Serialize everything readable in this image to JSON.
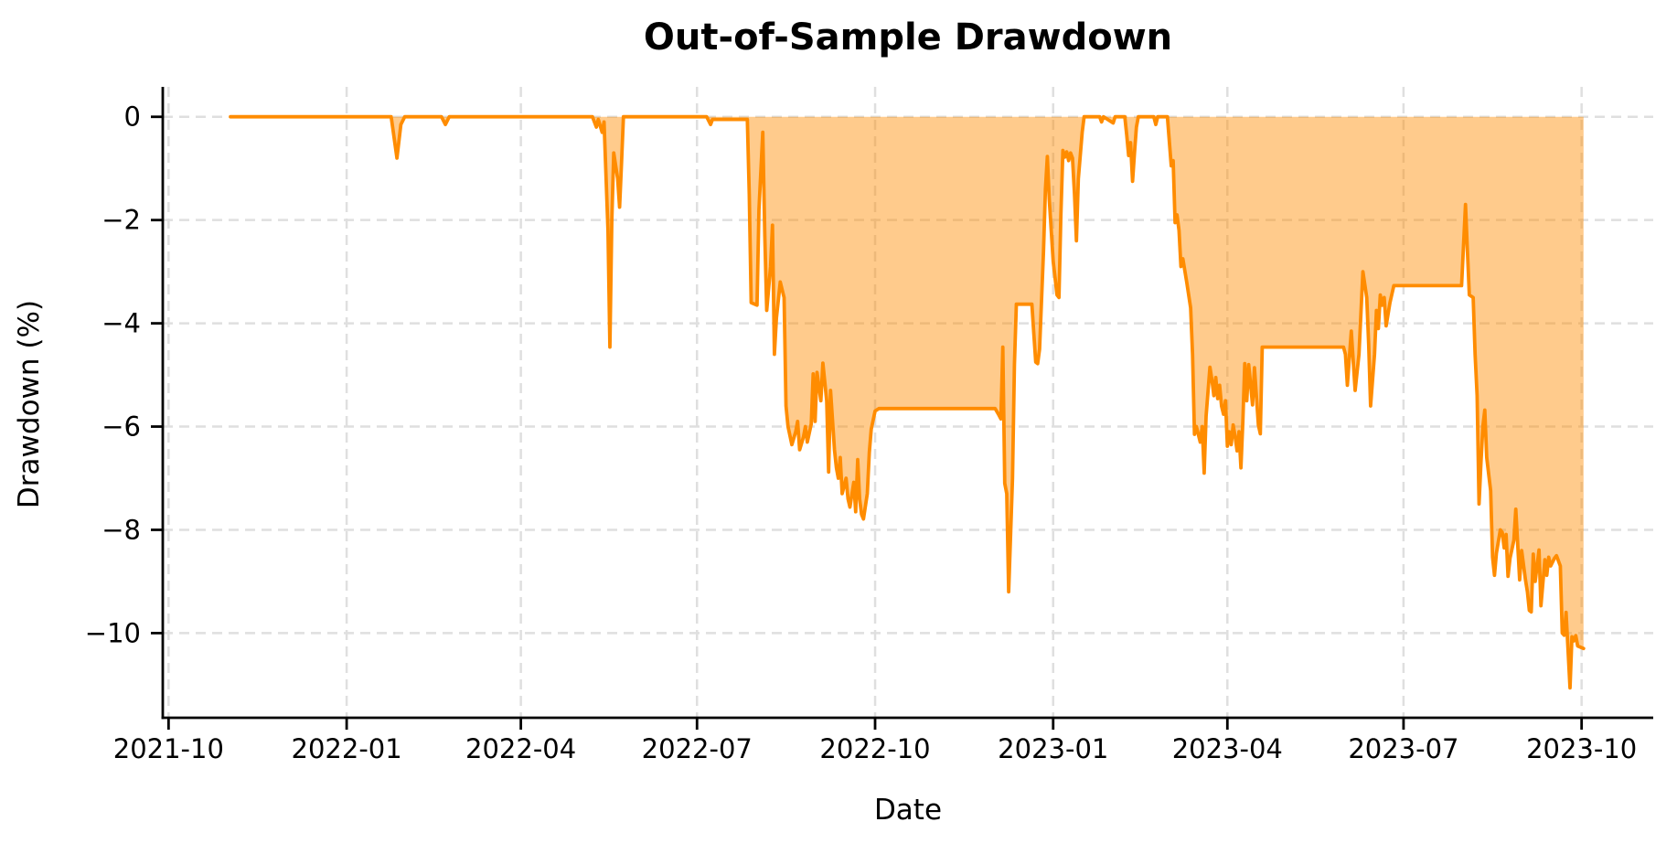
{
  "figure": {
    "title": "Out-of-Sample Drawdown",
    "xlabel": "Date",
    "ylabel": "Drawdown (%)"
  },
  "chart_data": {
    "type": "area",
    "title": "Out-of-Sample Drawdown",
    "xlabel": "Date",
    "ylabel": "Drawdown (%)",
    "legend": "none",
    "grid": true,
    "grid_style": "dashed",
    "grid_color": "#dfdfdf",
    "line_color": "#ff8c00",
    "fill_color": "rgba(255,140,0,0.45)",
    "spine_color": "#000000",
    "xlim": [
      "2021-09-28",
      "2023-11-07"
    ],
    "ylim": [
      -11.64,
      0.58
    ],
    "x_ticks": [
      {
        "label": "2021-10",
        "date": "2021-10-01"
      },
      {
        "label": "2022-01",
        "date": "2022-01-01"
      },
      {
        "label": "2022-04",
        "date": "2022-04-01"
      },
      {
        "label": "2022-07",
        "date": "2022-07-01"
      },
      {
        "label": "2022-10",
        "date": "2022-10-01"
      },
      {
        "label": "2023-01",
        "date": "2023-01-01"
      },
      {
        "label": "2023-04",
        "date": "2023-04-01"
      },
      {
        "label": "2023-07",
        "date": "2023-07-01"
      },
      {
        "label": "2023-10",
        "date": "2023-10-01"
      }
    ],
    "y_ticks": [
      {
        "label": "0",
        "value": 0
      },
      {
        "label": "−2",
        "value": -2
      },
      {
        "label": "−4",
        "value": -4
      },
      {
        "label": "−6",
        "value": -6
      },
      {
        "label": "−8",
        "value": -8
      },
      {
        "label": "−10",
        "value": -10
      }
    ],
    "series": [
      {
        "name": "drawdown_pct",
        "fill_to": 0,
        "points": [
          [
            "2021-11-02",
            0
          ],
          [
            "2022-01-24",
            0
          ],
          [
            "2022-01-27",
            -0.8
          ],
          [
            "2022-01-29",
            -0.15
          ],
          [
            "2022-01-31",
            0
          ],
          [
            "2022-02-19",
            0
          ],
          [
            "2022-02-21",
            -0.15
          ],
          [
            "2022-02-23",
            0
          ],
          [
            "2022-05-08",
            0
          ],
          [
            "2022-05-10",
            -0.2
          ],
          [
            "2022-05-11",
            -0.05
          ],
          [
            "2022-05-13",
            -0.3
          ],
          [
            "2022-05-14",
            -0.1
          ],
          [
            "2022-05-16",
            -2.2
          ],
          [
            "2022-05-17",
            -4.46
          ],
          [
            "2022-05-18",
            -2.0
          ],
          [
            "2022-05-19",
            -0.7
          ],
          [
            "2022-05-21",
            -1.2
          ],
          [
            "2022-05-22",
            -1.75
          ],
          [
            "2022-05-23",
            -0.9
          ],
          [
            "2022-05-24",
            0
          ],
          [
            "2022-07-06",
            0
          ],
          [
            "2022-07-08",
            -0.15
          ],
          [
            "2022-07-09",
            -0.05
          ],
          [
            "2022-07-27",
            -0.05
          ],
          [
            "2022-07-28",
            -1.5
          ],
          [
            "2022-07-29",
            -3.6
          ],
          [
            "2022-08-01",
            -3.65
          ],
          [
            "2022-08-02",
            -1.8
          ],
          [
            "2022-08-04",
            -0.3
          ],
          [
            "2022-08-05",
            -2.3
          ],
          [
            "2022-08-06",
            -3.75
          ],
          [
            "2022-08-08",
            -2.9
          ],
          [
            "2022-08-09",
            -2.1
          ],
          [
            "2022-08-10",
            -4.6
          ],
          [
            "2022-08-11",
            -3.9
          ],
          [
            "2022-08-13",
            -3.2
          ],
          [
            "2022-08-15",
            -3.5
          ],
          [
            "2022-08-16",
            -5.6
          ],
          [
            "2022-08-17",
            -6.0
          ],
          [
            "2022-08-19",
            -6.35
          ],
          [
            "2022-08-21",
            -6.1
          ],
          [
            "2022-08-22",
            -5.9
          ],
          [
            "2022-08-23",
            -6.45
          ],
          [
            "2022-08-25",
            -6.2
          ],
          [
            "2022-08-26",
            -6.0
          ],
          [
            "2022-08-27",
            -6.3
          ],
          [
            "2022-08-29",
            -5.95
          ],
          [
            "2022-08-30",
            -4.98
          ],
          [
            "2022-08-31",
            -5.9
          ],
          [
            "2022-09-01",
            -4.95
          ],
          [
            "2022-09-03",
            -5.5
          ],
          [
            "2022-09-04",
            -4.77
          ],
          [
            "2022-09-06",
            -5.5
          ],
          [
            "2022-09-07",
            -6.88
          ],
          [
            "2022-09-08",
            -5.3
          ],
          [
            "2022-09-10",
            -6.45
          ],
          [
            "2022-09-11",
            -6.8
          ],
          [
            "2022-09-12",
            -7.0
          ],
          [
            "2022-09-13",
            -6.6
          ],
          [
            "2022-09-14",
            -7.3
          ],
          [
            "2022-09-16",
            -7.0
          ],
          [
            "2022-09-17",
            -7.4
          ],
          [
            "2022-09-18",
            -7.56
          ],
          [
            "2022-09-20",
            -7.08
          ],
          [
            "2022-09-21",
            -7.65
          ],
          [
            "2022-09-22",
            -6.64
          ],
          [
            "2022-09-23",
            -7.4
          ],
          [
            "2022-09-24",
            -7.7
          ],
          [
            "2022-09-25",
            -7.79
          ],
          [
            "2022-09-27",
            -7.3
          ],
          [
            "2022-09-28",
            -6.5
          ],
          [
            "2022-09-29",
            -6.05
          ],
          [
            "2022-10-01",
            -5.7
          ],
          [
            "2022-10-03",
            -5.65
          ],
          [
            "2022-12-02",
            -5.65
          ],
          [
            "2022-12-04",
            -5.78
          ],
          [
            "2022-12-05",
            -5.85
          ],
          [
            "2022-12-06",
            -4.46
          ],
          [
            "2022-12-07",
            -7.1
          ],
          [
            "2022-12-08",
            -7.3
          ],
          [
            "2022-12-09",
            -9.2
          ],
          [
            "2022-12-11",
            -7.0
          ],
          [
            "2022-12-12",
            -4.8
          ],
          [
            "2022-12-13",
            -3.63
          ],
          [
            "2022-12-21",
            -3.63
          ],
          [
            "2022-12-22",
            -4.2
          ],
          [
            "2022-12-23",
            -4.75
          ],
          [
            "2022-12-24",
            -4.78
          ],
          [
            "2022-12-25",
            -4.5
          ],
          [
            "2022-12-27",
            -2.6
          ],
          [
            "2022-12-28",
            -1.4
          ],
          [
            "2022-12-29",
            -0.77
          ],
          [
            "2022-12-30",
            -1.6
          ],
          [
            "2023-01-01",
            -2.8
          ],
          [
            "2023-01-03",
            -3.45
          ],
          [
            "2023-01-04",
            -3.5
          ],
          [
            "2023-01-05",
            -1.9
          ],
          [
            "2023-01-06",
            -0.65
          ],
          [
            "2023-01-07",
            -0.78
          ],
          [
            "2023-01-08",
            -0.68
          ],
          [
            "2023-01-09",
            -0.85
          ],
          [
            "2023-01-10",
            -0.7
          ],
          [
            "2023-01-11",
            -0.8
          ],
          [
            "2023-01-12",
            -1.5
          ],
          [
            "2023-01-13",
            -2.4
          ],
          [
            "2023-01-14",
            -1.2
          ],
          [
            "2023-01-16",
            -0.3
          ],
          [
            "2023-01-17",
            0
          ],
          [
            "2023-01-25",
            0
          ],
          [
            "2023-01-26",
            -0.1
          ],
          [
            "2023-01-27",
            0
          ],
          [
            "2023-02-01",
            -0.12
          ],
          [
            "2023-02-02",
            0
          ],
          [
            "2023-02-07",
            0
          ],
          [
            "2023-02-08",
            -0.35
          ],
          [
            "2023-02-09",
            -0.75
          ],
          [
            "2023-02-10",
            -0.5
          ],
          [
            "2023-02-11",
            -1.25
          ],
          [
            "2023-02-12",
            -0.7
          ],
          [
            "2023-02-13",
            -0.2
          ],
          [
            "2023-02-14",
            0
          ],
          [
            "2023-02-22",
            0
          ],
          [
            "2023-02-23",
            -0.15
          ],
          [
            "2023-02-24",
            0
          ],
          [
            "2023-03-01",
            0
          ],
          [
            "2023-03-03",
            -0.95
          ],
          [
            "2023-03-04",
            -0.85
          ],
          [
            "2023-03-05",
            -2.05
          ],
          [
            "2023-03-06",
            -1.9
          ],
          [
            "2023-03-07",
            -2.2
          ],
          [
            "2023-03-08",
            -2.9
          ],
          [
            "2023-03-09",
            -2.75
          ],
          [
            "2023-03-11",
            -3.2
          ],
          [
            "2023-03-13",
            -3.7
          ],
          [
            "2023-03-14",
            -4.6
          ],
          [
            "2023-03-15",
            -6.15
          ],
          [
            "2023-03-16",
            -6.0
          ],
          [
            "2023-03-18",
            -6.3
          ],
          [
            "2023-03-19",
            -6.0
          ],
          [
            "2023-03-20",
            -6.9
          ],
          [
            "2023-03-21",
            -5.8
          ],
          [
            "2023-03-23",
            -4.85
          ],
          [
            "2023-03-24",
            -5.1
          ],
          [
            "2023-03-25",
            -5.4
          ],
          [
            "2023-03-26",
            -5.05
          ],
          [
            "2023-03-27",
            -5.46
          ],
          [
            "2023-03-28",
            -5.2
          ],
          [
            "2023-03-29",
            -5.6
          ],
          [
            "2023-03-30",
            -5.76
          ],
          [
            "2023-03-31",
            -5.5
          ],
          [
            "2023-04-01",
            -6.38
          ],
          [
            "2023-04-02",
            -6.1
          ],
          [
            "2023-04-03",
            -6.35
          ],
          [
            "2023-04-04",
            -5.97
          ],
          [
            "2023-04-05",
            -6.2
          ],
          [
            "2023-04-06",
            -6.47
          ],
          [
            "2023-04-07",
            -6.1
          ],
          [
            "2023-04-08",
            -6.8
          ],
          [
            "2023-04-09",
            -5.9
          ],
          [
            "2023-04-10",
            -4.78
          ],
          [
            "2023-04-11",
            -5.5
          ],
          [
            "2023-04-12",
            -4.8
          ],
          [
            "2023-04-14",
            -5.58
          ],
          [
            "2023-04-15",
            -4.86
          ],
          [
            "2023-04-16",
            -5.4
          ],
          [
            "2023-04-17",
            -5.97
          ],
          [
            "2023-04-18",
            -6.14
          ],
          [
            "2023-04-19",
            -4.46
          ],
          [
            "2023-05-31",
            -4.46
          ],
          [
            "2023-06-01",
            -4.6
          ],
          [
            "2023-06-02",
            -5.2
          ],
          [
            "2023-06-04",
            -4.15
          ],
          [
            "2023-06-06",
            -5.3
          ],
          [
            "2023-06-08",
            -4.6
          ],
          [
            "2023-06-10",
            -3.0
          ],
          [
            "2023-06-12",
            -3.5
          ],
          [
            "2023-06-13",
            -4.4
          ],
          [
            "2023-06-14",
            -5.6
          ],
          [
            "2023-06-16",
            -4.6
          ],
          [
            "2023-06-17",
            -3.75
          ],
          [
            "2023-06-18",
            -4.1
          ],
          [
            "2023-06-19",
            -3.45
          ],
          [
            "2023-06-20",
            -3.65
          ],
          [
            "2023-06-21",
            -3.5
          ],
          [
            "2023-06-22",
            -4.05
          ],
          [
            "2023-06-24",
            -3.6
          ],
          [
            "2023-06-26",
            -3.27
          ],
          [
            "2023-07-31",
            -3.27
          ],
          [
            "2023-08-02",
            -1.7
          ],
          [
            "2023-08-03",
            -2.6
          ],
          [
            "2023-08-04",
            -3.45
          ],
          [
            "2023-08-06",
            -3.5
          ],
          [
            "2023-08-07",
            -4.6
          ],
          [
            "2023-08-08",
            -5.4
          ],
          [
            "2023-08-09",
            -7.5
          ],
          [
            "2023-08-10",
            -6.7
          ],
          [
            "2023-08-11",
            -6.0
          ],
          [
            "2023-08-12",
            -5.68
          ],
          [
            "2023-08-13",
            -6.6
          ],
          [
            "2023-08-15",
            -7.24
          ],
          [
            "2023-08-16",
            -8.53
          ],
          [
            "2023-08-17",
            -8.88
          ],
          [
            "2023-08-18",
            -8.45
          ],
          [
            "2023-08-20",
            -8.0
          ],
          [
            "2023-08-21",
            -8.05
          ],
          [
            "2023-08-22",
            -8.35
          ],
          [
            "2023-08-23",
            -8.09
          ],
          [
            "2023-08-24",
            -8.9
          ],
          [
            "2023-08-25",
            -8.55
          ],
          [
            "2023-08-27",
            -8.2
          ],
          [
            "2023-08-28",
            -7.6
          ],
          [
            "2023-08-30",
            -8.97
          ],
          [
            "2023-08-31",
            -8.4
          ],
          [
            "2023-09-02",
            -8.97
          ],
          [
            "2023-09-03",
            -9.2
          ],
          [
            "2023-09-04",
            -9.56
          ],
          [
            "2023-09-05",
            -9.59
          ],
          [
            "2023-09-06",
            -8.47
          ],
          [
            "2023-09-07",
            -9.0
          ],
          [
            "2023-09-09",
            -8.39
          ],
          [
            "2023-09-10",
            -9.47
          ],
          [
            "2023-09-12",
            -8.58
          ],
          [
            "2023-09-13",
            -8.88
          ],
          [
            "2023-09-14",
            -8.53
          ],
          [
            "2023-09-15",
            -8.7
          ],
          [
            "2023-09-17",
            -8.55
          ],
          [
            "2023-09-18",
            -8.5
          ],
          [
            "2023-09-20",
            -8.7
          ],
          [
            "2023-09-21",
            -10.0
          ],
          [
            "2023-09-22",
            -10.04
          ],
          [
            "2023-09-23",
            -9.6
          ],
          [
            "2023-09-25",
            -11.06
          ],
          [
            "2023-09-26",
            -10.07
          ],
          [
            "2023-09-27",
            -10.15
          ],
          [
            "2023-09-28",
            -10.05
          ],
          [
            "2023-09-29",
            -10.25
          ],
          [
            "2023-10-02",
            -10.3
          ]
        ]
      }
    ]
  }
}
